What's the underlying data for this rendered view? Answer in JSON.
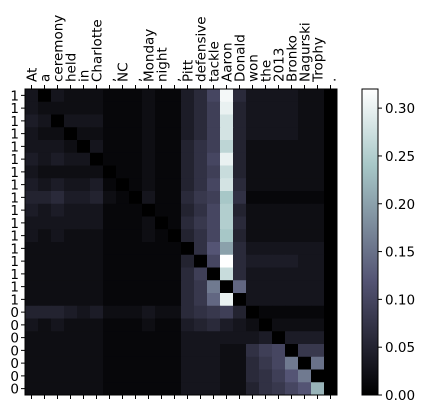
{
  "chart_data": {
    "type": "heatmap",
    "x_tokens": [
      "At",
      "a",
      "ceremony",
      "held",
      "in",
      "Charlotte",
      ",",
      "NC",
      ",",
      "Monday",
      "night",
      ",",
      "Pitt",
      "defensive",
      "tackle",
      "Aaron",
      "Donald",
      "won",
      "the",
      "2013",
      "Bronko",
      "Nagurski",
      "Trophy",
      "."
    ],
    "y_tokens": [
      "1",
      "1",
      "1",
      "1",
      "1",
      "1",
      "1",
      "1",
      "1",
      "1",
      "1",
      "1",
      "1",
      "1",
      "1",
      "1",
      "1",
      "0",
      "0",
      "0",
      "0",
      "0",
      "0",
      "0"
    ],
    "colorbar": {
      "min": 0.0,
      "max": 0.32,
      "ticks": [
        0.0,
        0.05,
        0.1,
        0.15,
        0.2,
        0.25,
        0.3
      ],
      "tick_labels": [
        "0.00",
        "0.05",
        "0.10",
        "0.15",
        "0.20",
        "0.25",
        "0.30"
      ],
      "colormap": "bone"
    },
    "values": [
      [
        0.03,
        0.0,
        0.03,
        0.02,
        0.02,
        0.02,
        0.01,
        0.01,
        0.01,
        0.02,
        0.01,
        0.01,
        0.04,
        0.06,
        0.1,
        0.31,
        0.06,
        0.03,
        0.03,
        0.03,
        0.03,
        0.02,
        0.02,
        0.0
      ],
      [
        0.03,
        0.02,
        0.02,
        0.02,
        0.02,
        0.02,
        0.01,
        0.01,
        0.01,
        0.02,
        0.01,
        0.01,
        0.04,
        0.06,
        0.09,
        0.3,
        0.05,
        0.03,
        0.03,
        0.03,
        0.03,
        0.02,
        0.02,
        0.0
      ],
      [
        0.04,
        0.03,
        0.0,
        0.03,
        0.03,
        0.03,
        0.01,
        0.01,
        0.01,
        0.02,
        0.01,
        0.01,
        0.04,
        0.06,
        0.09,
        0.28,
        0.05,
        0.03,
        0.03,
        0.03,
        0.03,
        0.02,
        0.02,
        0.0
      ],
      [
        0.03,
        0.02,
        0.02,
        0.0,
        0.02,
        0.02,
        0.01,
        0.01,
        0.01,
        0.02,
        0.01,
        0.01,
        0.04,
        0.06,
        0.09,
        0.28,
        0.05,
        0.03,
        0.03,
        0.03,
        0.03,
        0.02,
        0.02,
        0.0
      ],
      [
        0.03,
        0.03,
        0.03,
        0.02,
        0.0,
        0.03,
        0.01,
        0.01,
        0.01,
        0.02,
        0.01,
        0.01,
        0.05,
        0.07,
        0.09,
        0.26,
        0.05,
        0.02,
        0.02,
        0.02,
        0.02,
        0.02,
        0.02,
        0.0
      ],
      [
        0.04,
        0.03,
        0.04,
        0.03,
        0.03,
        0.0,
        0.01,
        0.01,
        0.01,
        0.02,
        0.01,
        0.01,
        0.05,
        0.07,
        0.1,
        0.3,
        0.05,
        0.02,
        0.02,
        0.02,
        0.02,
        0.02,
        0.02,
        0.0
      ],
      [
        0.03,
        0.02,
        0.02,
        0.02,
        0.02,
        0.02,
        0.0,
        0.01,
        0.01,
        0.02,
        0.01,
        0.01,
        0.05,
        0.07,
        0.09,
        0.27,
        0.05,
        0.02,
        0.02,
        0.02,
        0.02,
        0.02,
        0.02,
        0.0
      ],
      [
        0.04,
        0.03,
        0.04,
        0.03,
        0.03,
        0.04,
        0.01,
        0.0,
        0.01,
        0.02,
        0.01,
        0.01,
        0.05,
        0.07,
        0.1,
        0.28,
        0.06,
        0.02,
        0.02,
        0.02,
        0.02,
        0.02,
        0.02,
        0.0
      ],
      [
        0.05,
        0.05,
        0.06,
        0.04,
        0.04,
        0.05,
        0.02,
        0.01,
        0.0,
        0.03,
        0.01,
        0.01,
        0.06,
        0.08,
        0.09,
        0.24,
        0.07,
        0.01,
        0.01,
        0.01,
        0.01,
        0.01,
        0.01,
        0.0
      ],
      [
        0.04,
        0.03,
        0.04,
        0.03,
        0.03,
        0.03,
        0.01,
        0.01,
        0.01,
        0.0,
        0.01,
        0.01,
        0.05,
        0.07,
        0.1,
        0.25,
        0.05,
        0.02,
        0.02,
        0.02,
        0.02,
        0.02,
        0.02,
        0.0
      ],
      [
        0.03,
        0.03,
        0.03,
        0.03,
        0.03,
        0.03,
        0.01,
        0.01,
        0.01,
        0.02,
        0.0,
        0.01,
        0.06,
        0.08,
        0.1,
        0.25,
        0.06,
        0.02,
        0.02,
        0.02,
        0.02,
        0.02,
        0.02,
        0.0
      ],
      [
        0.03,
        0.02,
        0.03,
        0.02,
        0.02,
        0.02,
        0.01,
        0.01,
        0.01,
        0.02,
        0.01,
        0.0,
        0.05,
        0.07,
        0.1,
        0.24,
        0.05,
        0.02,
        0.02,
        0.02,
        0.02,
        0.02,
        0.02,
        0.0
      ],
      [
        0.02,
        0.02,
        0.02,
        0.02,
        0.02,
        0.02,
        0.01,
        0.01,
        0.01,
        0.01,
        0.01,
        0.01,
        0.0,
        0.07,
        0.12,
        0.2,
        0.06,
        0.03,
        0.03,
        0.03,
        0.03,
        0.03,
        0.03,
        0.0
      ],
      [
        0.02,
        0.02,
        0.02,
        0.02,
        0.02,
        0.02,
        0.01,
        0.01,
        0.01,
        0.01,
        0.01,
        0.01,
        0.05,
        0.0,
        0.1,
        0.33,
        0.06,
        0.04,
        0.04,
        0.04,
        0.04,
        0.03,
        0.03,
        0.0
      ],
      [
        0.02,
        0.02,
        0.02,
        0.02,
        0.02,
        0.02,
        0.01,
        0.01,
        0.01,
        0.01,
        0.01,
        0.01,
        0.06,
        0.09,
        0.0,
        0.27,
        0.06,
        0.03,
        0.03,
        0.03,
        0.03,
        0.03,
        0.03,
        0.0
      ],
      [
        0.02,
        0.02,
        0.02,
        0.02,
        0.02,
        0.02,
        0.01,
        0.01,
        0.01,
        0.01,
        0.01,
        0.01,
        0.06,
        0.08,
        0.16,
        0.0,
        0.14,
        0.03,
        0.03,
        0.03,
        0.03,
        0.03,
        0.03,
        0.0
      ],
      [
        0.02,
        0.02,
        0.02,
        0.02,
        0.02,
        0.02,
        0.01,
        0.01,
        0.01,
        0.01,
        0.01,
        0.01,
        0.06,
        0.08,
        0.14,
        0.3,
        0.0,
        0.03,
        0.03,
        0.03,
        0.03,
        0.03,
        0.03,
        0.0
      ],
      [
        0.05,
        0.05,
        0.05,
        0.04,
        0.03,
        0.04,
        0.02,
        0.02,
        0.02,
        0.03,
        0.02,
        0.02,
        0.06,
        0.07,
        0.08,
        0.09,
        0.05,
        0.0,
        0.01,
        0.01,
        0.01,
        0.01,
        0.01,
        0.0
      ],
      [
        0.03,
        0.02,
        0.03,
        0.02,
        0.02,
        0.02,
        0.01,
        0.01,
        0.01,
        0.02,
        0.01,
        0.01,
        0.04,
        0.05,
        0.06,
        0.04,
        0.03,
        0.02,
        0.0,
        0.02,
        0.02,
        0.02,
        0.02,
        0.0
      ],
      [
        0.02,
        0.02,
        0.02,
        0.02,
        0.02,
        0.02,
        0.01,
        0.01,
        0.01,
        0.01,
        0.01,
        0.01,
        0.03,
        0.03,
        0.03,
        0.03,
        0.03,
        0.03,
        0.04,
        0.0,
        0.04,
        0.04,
        0.04,
        0.0
      ],
      [
        0.02,
        0.02,
        0.02,
        0.02,
        0.02,
        0.02,
        0.01,
        0.01,
        0.01,
        0.01,
        0.01,
        0.01,
        0.03,
        0.03,
        0.03,
        0.02,
        0.02,
        0.07,
        0.09,
        0.1,
        0.0,
        0.08,
        0.08,
        0.0
      ],
      [
        0.02,
        0.02,
        0.02,
        0.02,
        0.02,
        0.02,
        0.01,
        0.01,
        0.01,
        0.01,
        0.01,
        0.01,
        0.03,
        0.03,
        0.03,
        0.02,
        0.02,
        0.06,
        0.08,
        0.1,
        0.16,
        0.0,
        0.15,
        0.0
      ],
      [
        0.02,
        0.02,
        0.02,
        0.02,
        0.02,
        0.02,
        0.01,
        0.01,
        0.01,
        0.01,
        0.01,
        0.01,
        0.03,
        0.03,
        0.03,
        0.02,
        0.02,
        0.06,
        0.07,
        0.09,
        0.12,
        0.16,
        0.0,
        0.0
      ],
      [
        0.02,
        0.02,
        0.02,
        0.02,
        0.02,
        0.02,
        0.01,
        0.01,
        0.01,
        0.01,
        0.01,
        0.01,
        0.03,
        0.03,
        0.03,
        0.02,
        0.02,
        0.05,
        0.07,
        0.08,
        0.1,
        0.12,
        0.22,
        0.0
      ]
    ]
  }
}
